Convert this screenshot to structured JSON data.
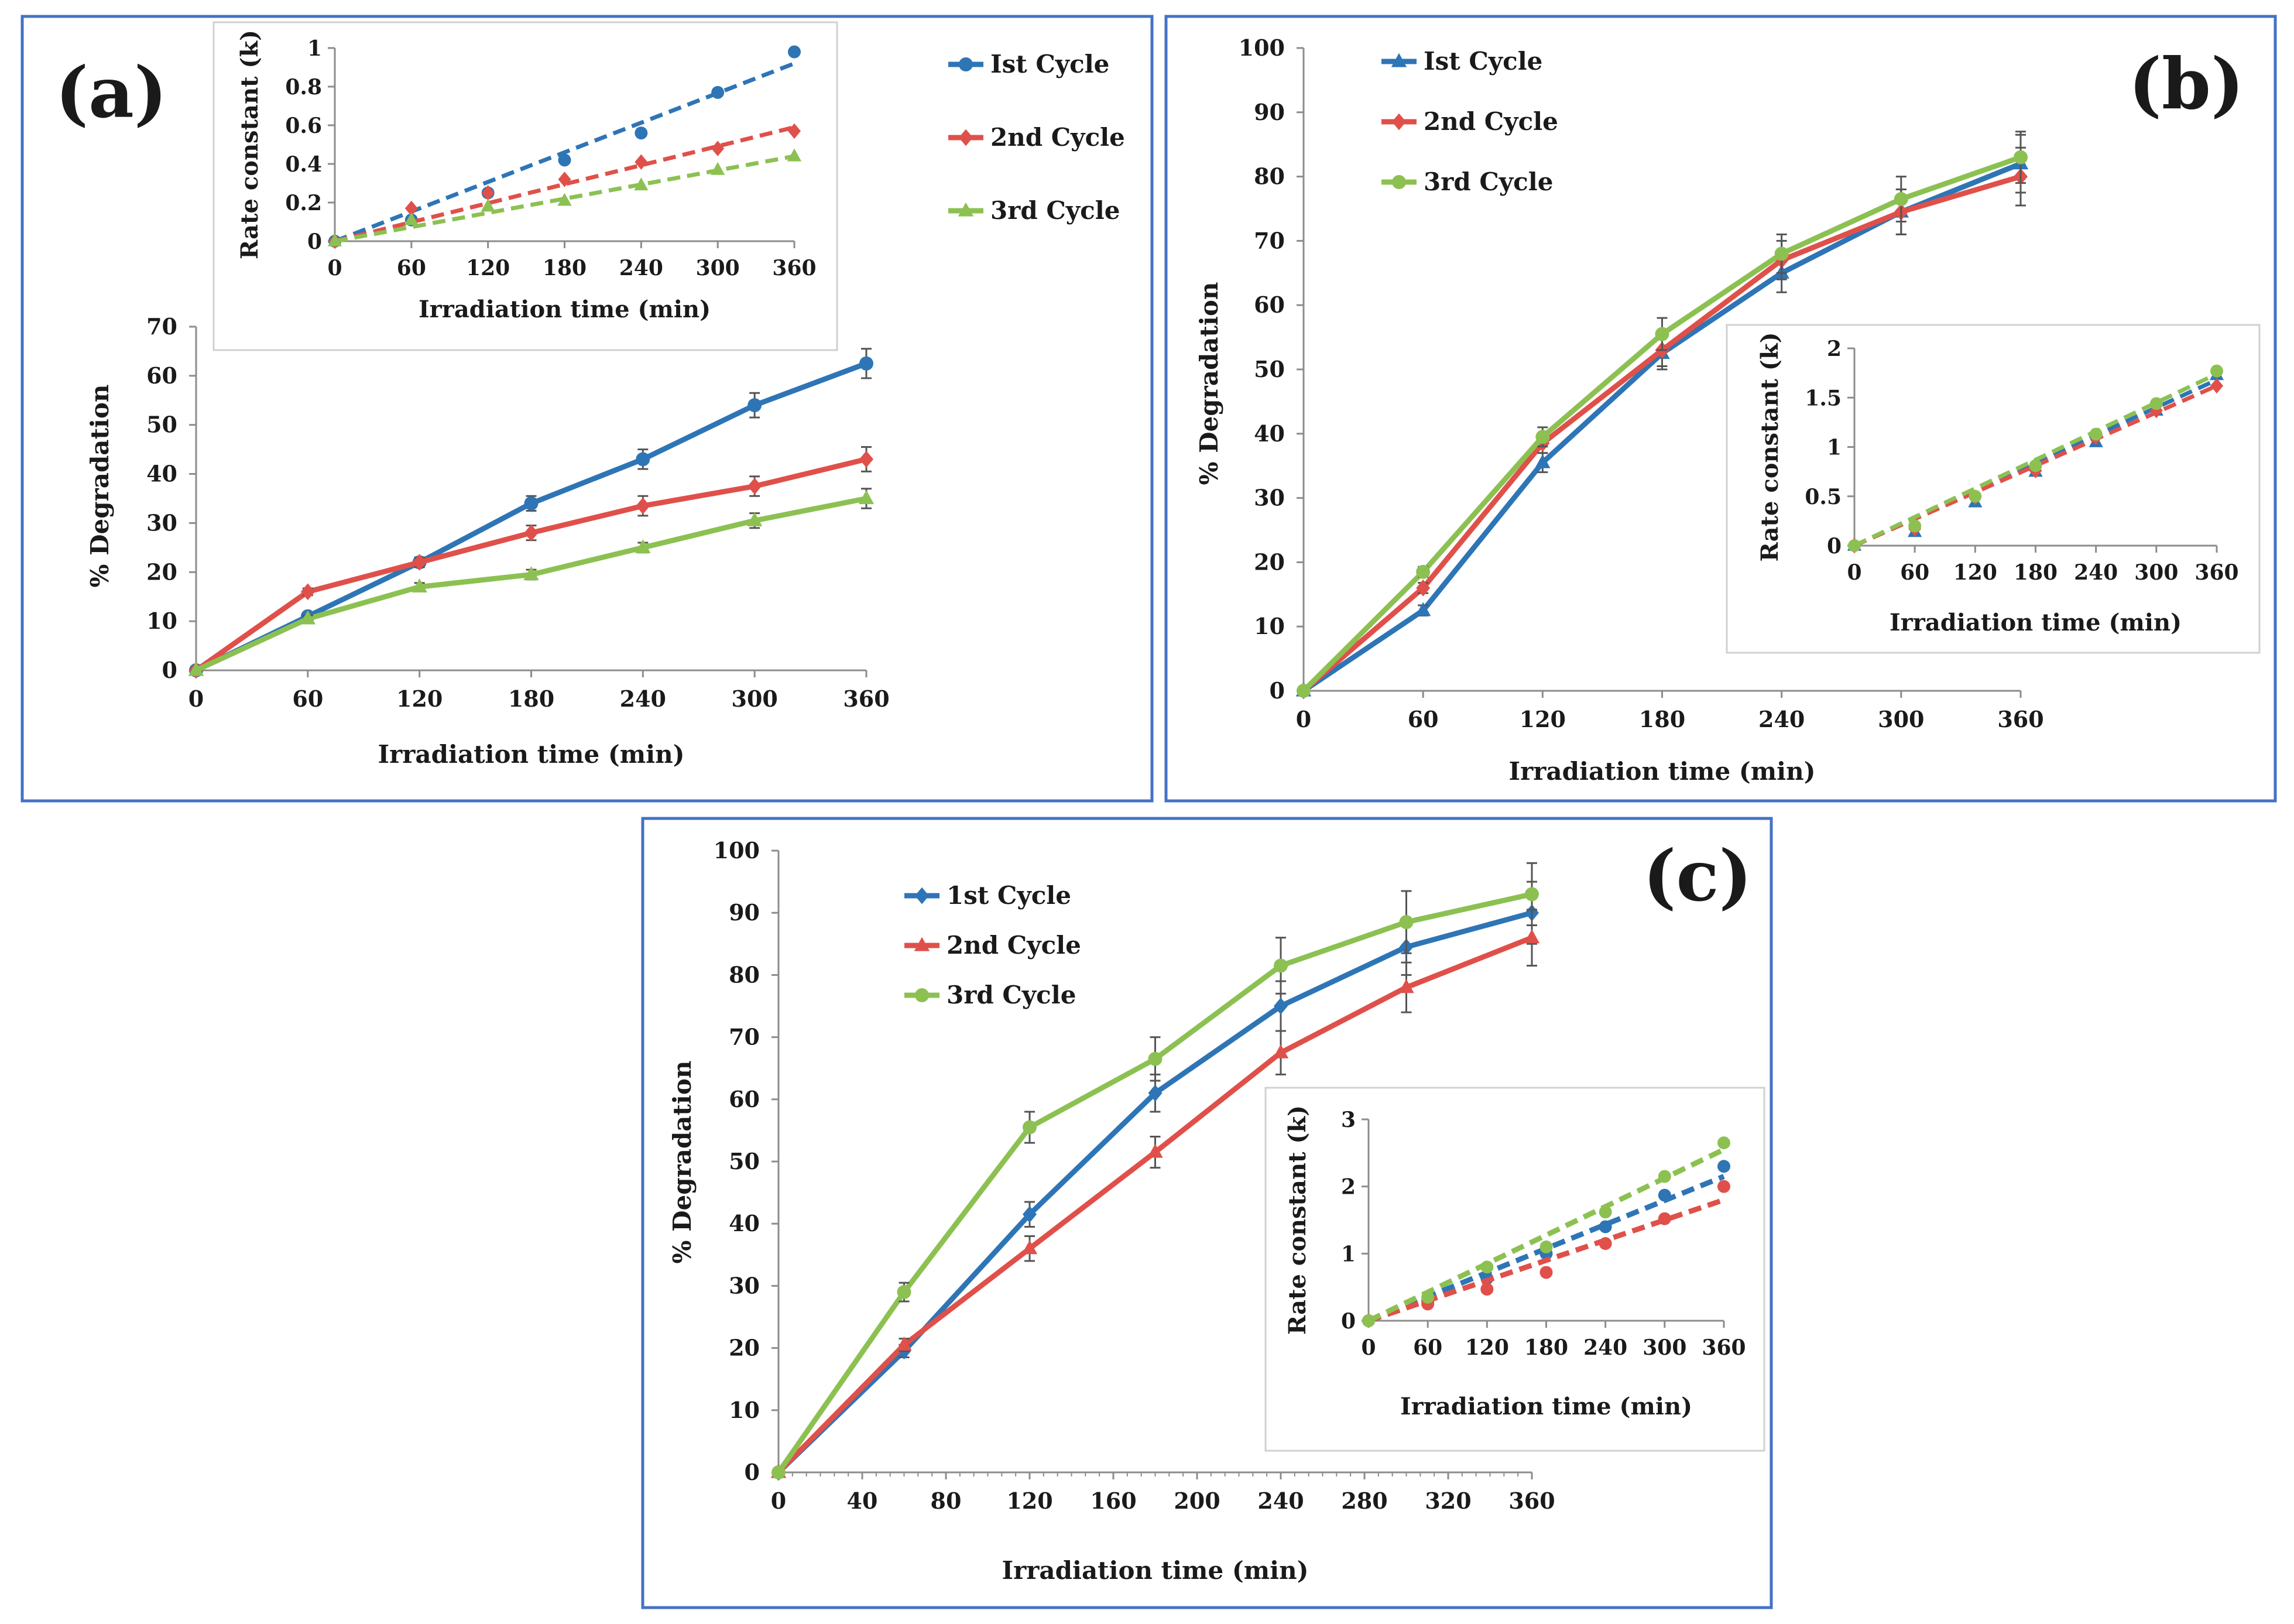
{
  "colors": {
    "cycle1": "#2e75b6",
    "cycle2": "#e0504a",
    "cycle3": "#8cc152",
    "frame": "#4472c4",
    "axis": "#8c8c8c",
    "inset_border": "#d0d0d0"
  },
  "chart_data": [
    {
      "panel_label": "(a)",
      "type": "line",
      "xlabel": "Irradiation time (min)",
      "ylabel": "% Degradation",
      "xlim": [
        0,
        360
      ],
      "ylim": [
        0,
        70
      ],
      "x_ticks": [
        0,
        60,
        120,
        180,
        240,
        300,
        360
      ],
      "y_ticks": [
        0,
        10,
        20,
        30,
        40,
        50,
        60,
        70
      ],
      "x": [
        0,
        60,
        120,
        180,
        240,
        300,
        360
      ],
      "series": [
        {
          "name": "Ist Cycle",
          "marker": "circle",
          "values": [
            0,
            11,
            22,
            34,
            43,
            54,
            62.5
          ],
          "errors": [
            0,
            0.8,
            1,
            1.5,
            2,
            2.5,
            3
          ]
        },
        {
          "name": "2nd Cycle",
          "marker": "diamond",
          "values": [
            0,
            16,
            22,
            28,
            33.5,
            37.5,
            43
          ],
          "errors": [
            0,
            0.7,
            1,
            1.5,
            2,
            2,
            2.5
          ]
        },
        {
          "name": "3rd Cycle",
          "marker": "triangle",
          "values": [
            0,
            10.5,
            17,
            19.5,
            25,
            30.5,
            35
          ],
          "errors": [
            0,
            0.7,
            0.8,
            1,
            1,
            1.5,
            2
          ]
        }
      ],
      "legend": "upper-right-outside",
      "inset": {
        "xlabel": "Irradiation time (min)",
        "ylabel": "Rate  constant (k)",
        "xlim": [
          0,
          360
        ],
        "ylim": [
          0,
          1
        ],
        "x_ticks": [
          0,
          60,
          120,
          180,
          240,
          300,
          360
        ],
        "y_ticks": [
          0,
          0.2,
          0.4,
          0.6,
          0.8,
          1
        ],
        "x": [
          0,
          60,
          120,
          180,
          240,
          300,
          360
        ],
        "series": [
          {
            "name": "Ist Cycle",
            "marker": "circle",
            "values": [
              0,
              0.11,
              0.25,
              0.42,
              0.56,
              0.77,
              0.98
            ],
            "fit_end": 0.92
          },
          {
            "name": "2nd Cycle",
            "marker": "diamond",
            "values": [
              0,
              0.17,
              0.25,
              0.32,
              0.41,
              0.48,
              0.57
            ],
            "fit_end": 0.59
          },
          {
            "name": "3rd Cycle",
            "marker": "triangle",
            "values": [
              0,
              0.11,
              0.18,
              0.21,
              0.29,
              0.37,
              0.44
            ],
            "fit_end": 0.44
          }
        ]
      }
    },
    {
      "panel_label": "(b)",
      "type": "line",
      "xlabel": "Irradiation time (min)",
      "ylabel": "% Degradation",
      "xlim": [
        0,
        360
      ],
      "ylim": [
        0,
        100
      ],
      "x_ticks": [
        0,
        60,
        120,
        180,
        240,
        300,
        360
      ],
      "y_ticks": [
        0,
        10,
        20,
        30,
        40,
        50,
        60,
        70,
        80,
        90,
        100
      ],
      "x": [
        0,
        60,
        120,
        180,
        240,
        300,
        360
      ],
      "series": [
        {
          "name": "Ist Cycle",
          "marker": "triangle",
          "values": [
            0,
            12.5,
            35.5,
            52.5,
            65,
            74.5,
            82
          ],
          "errors": [
            0,
            0.8,
            1.5,
            2.5,
            3,
            3.5,
            4.5
          ]
        },
        {
          "name": "2nd Cycle",
          "marker": "diamond",
          "values": [
            0,
            16,
            38.5,
            53,
            67,
            74.5,
            80
          ],
          "errors": [
            0,
            0.8,
            1.5,
            2.5,
            3,
            3.5,
            4.5
          ]
        },
        {
          "name": "3rd Cycle",
          "marker": "circle",
          "values": [
            0,
            18.5,
            39.5,
            55.5,
            68,
            76.5,
            83
          ],
          "errors": [
            0,
            0.8,
            1.5,
            2.5,
            3,
            3.5,
            4
          ]
        }
      ],
      "legend": "top-left",
      "inset": {
        "xlabel": "Irradiation time (min)",
        "ylabel": "Rate constant (k)",
        "xlim": [
          0,
          360
        ],
        "ylim": [
          0,
          2
        ],
        "x_ticks": [
          0,
          60,
          120,
          180,
          240,
          300,
          360
        ],
        "y_ticks": [
          0,
          0.5,
          1,
          1.5,
          2
        ],
        "x": [
          0,
          60,
          120,
          180,
          240,
          300,
          360
        ],
        "series": [
          {
            "name": "Ist Cycle",
            "marker": "triangle",
            "values": [
              0,
              0.14,
              0.44,
              0.75,
              1.05,
              1.37,
              1.73
            ],
            "fit_end": 1.68
          },
          {
            "name": "2nd Cycle",
            "marker": "diamond",
            "values": [
              0,
              0.17,
              0.49,
              0.76,
              1.1,
              1.37,
              1.62
            ],
            "fit_end": 1.62
          },
          {
            "name": "3rd Cycle",
            "marker": "circle",
            "values": [
              0,
              0.2,
              0.5,
              0.81,
              1.13,
              1.44,
              1.77
            ],
            "fit_end": 1.74
          }
        ]
      }
    },
    {
      "panel_label": "(c)",
      "type": "line",
      "xlabel": "Irradiation time (min)",
      "ylabel": "% Degradation",
      "xlim": [
        0,
        360
      ],
      "ylim": [
        0,
        100
      ],
      "x_ticks": [
        0,
        40,
        80,
        120,
        160,
        200,
        240,
        280,
        320,
        360
      ],
      "y_ticks": [
        0,
        10,
        20,
        30,
        40,
        50,
        60,
        70,
        80,
        90,
        100
      ],
      "x": [
        0,
        60,
        120,
        180,
        240,
        300,
        360
      ],
      "series": [
        {
          "name": "1st Cycle",
          "marker": "diamond",
          "values": [
            0,
            19.5,
            41.5,
            61,
            75,
            84.5,
            90
          ],
          "errors": [
            0,
            1,
            2,
            3,
            4,
            4.5,
            5
          ]
        },
        {
          "name": "2nd Cycle",
          "marker": "triangle",
          "values": [
            0,
            20.5,
            36,
            51.5,
            67.5,
            78,
            86
          ],
          "errors": [
            0,
            1,
            2,
            2.5,
            3.5,
            4,
            4.5
          ]
        },
        {
          "name": "3rd Cycle",
          "marker": "circle",
          "values": [
            0,
            29,
            55.5,
            66.5,
            81.5,
            88.5,
            93
          ],
          "errors": [
            0,
            1.5,
            2.5,
            3.5,
            4.5,
            5,
            5
          ]
        }
      ],
      "legend": "top-left",
      "inset": {
        "xlabel": "Irradiation time (min)",
        "ylabel": "Rate constant (k)",
        "xlim": [
          0,
          360
        ],
        "ylim": [
          0,
          3
        ],
        "x_ticks": [
          0,
          60,
          120,
          180,
          240,
          300,
          360
        ],
        "y_ticks": [
          0,
          1,
          2,
          3
        ],
        "x": [
          0,
          60,
          120,
          180,
          240,
          300,
          360
        ],
        "series": [
          {
            "name": "1st Cycle",
            "marker": "circle",
            "values": [
              0,
              0.3,
              0.63,
              1.0,
              1.4,
              1.87,
              2.3
            ],
            "fit_end": 2.15
          },
          {
            "name": "2nd Cycle",
            "marker": "circle",
            "values": [
              0,
              0.25,
              0.47,
              0.72,
              1.15,
              1.52,
              2.0
            ],
            "fit_end": 1.8
          },
          {
            "name": "3rd Cycle",
            "marker": "circle",
            "values": [
              0,
              0.35,
              0.8,
              1.1,
              1.62,
              2.15,
              2.65
            ],
            "fit_end": 2.55
          }
        ]
      }
    }
  ]
}
